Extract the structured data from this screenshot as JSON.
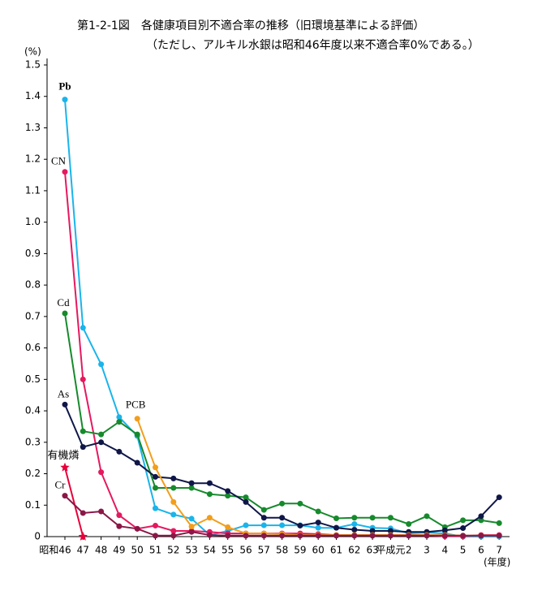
{
  "chart_data": {
    "type": "line",
    "title": "第1-2-1図　各健康項目別不適合率の推移（旧環境基準による評価）",
    "subtitle": "（ただし、アルキル水銀は昭和46年度以来不適合率0%である。）",
    "y_label": "(%)",
    "x_label": "(年度)",
    "categories": [
      "昭和46",
      "47",
      "48",
      "49",
      "50",
      "51",
      "52",
      "53",
      "54",
      "55",
      "56",
      "57",
      "58",
      "59",
      "60",
      "61",
      "62",
      "63",
      "平成元",
      "2",
      "3",
      "4",
      "5",
      "6",
      "7"
    ],
    "ylim": [
      0,
      1.5
    ],
    "yticks": [
      0,
      0.1,
      0.2,
      0.3,
      0.4,
      0.5,
      0.6,
      0.7,
      0.8,
      0.9,
      {
        "value": 1,
        "label": "1.0"
      },
      1.1,
      1.2,
      1.3,
      1.4,
      1.5
    ],
    "series": [
      {
        "name": "Pb",
        "color": "#1ab4ea",
        "values": [
          1.39,
          0.664,
          0.548,
          0.38,
          0.32,
          0.09,
          0.07,
          0.057,
          0.005,
          0.018,
          0.036,
          0.036,
          0.036,
          0.036,
          0.028,
          0.028,
          0.04,
          0.028,
          0.026,
          0.01,
          0.013,
          0.01,
          0,
          0,
          0
        ]
      },
      {
        "name": "CN",
        "color": "#e5195f",
        "values": [
          1.16,
          0.5,
          0.205,
          0.068,
          0.025,
          0.035,
          0.018,
          0.018,
          0.015,
          0.01,
          0.01,
          0.01,
          0.01,
          0.01,
          0.008,
          0.005,
          0.005,
          0.005,
          0.005,
          0.005,
          0.005,
          0.001,
          0.001,
          0.005,
          0.005
        ]
      },
      {
        "name": "Cd",
        "color": "#168a2c",
        "values": [
          0.71,
          0.335,
          0.325,
          0.365,
          0.325,
          0.155,
          0.155,
          0.155,
          0.135,
          0.13,
          0.125,
          0.085,
          0.105,
          0.105,
          0.08,
          0.058,
          0.06,
          0.06,
          0.06,
          0.04,
          0.065,
          0.03,
          0.052,
          0.052,
          0.043
        ]
      },
      {
        "name": "As",
        "color": "#0f1748",
        "values": [
          0.42,
          0.285,
          0.3,
          0.27,
          0.235,
          0.19,
          0.185,
          0.17,
          0.17,
          0.145,
          0.11,
          0.06,
          0.06,
          0.035,
          0.045,
          0.028,
          0.022,
          0.018,
          0.018,
          0.015,
          0.015,
          0.02,
          0.027,
          0.065,
          0.125
        ]
      },
      {
        "name": "PCB",
        "color": "#f29e1c",
        "values": [
          null,
          null,
          null,
          null,
          0.375,
          0.22,
          0.11,
          0.032,
          0.06,
          0.03,
          0.01,
          0.01,
          0.008,
          0.005,
          0.005,
          0.005,
          0.005,
          0.005,
          0.005,
          0.005,
          0.005,
          0.005,
          0.003,
          0.003,
          0.003
        ]
      },
      {
        "name": "有機燐",
        "color": "#e8003a",
        "marker": "star",
        "values": [
          0.22,
          0,
          null,
          null,
          null,
          null,
          null,
          null,
          null,
          null,
          null,
          null,
          null,
          null,
          null,
          null,
          null,
          null,
          null,
          null,
          null,
          null,
          null,
          null,
          null
        ]
      },
      {
        "name": "Cr",
        "color": "#8a1747",
        "values": [
          0.13,
          0.075,
          0.08,
          0.033,
          0.025,
          0.003,
          0.003,
          0.015,
          0.005,
          0.003,
          0.003,
          0.003,
          0.003,
          0.003,
          0.003,
          0.003,
          0.003,
          0.003,
          0.003,
          0.003,
          0.003,
          0.003,
          0.003,
          0.003,
          0.003
        ]
      }
    ]
  }
}
